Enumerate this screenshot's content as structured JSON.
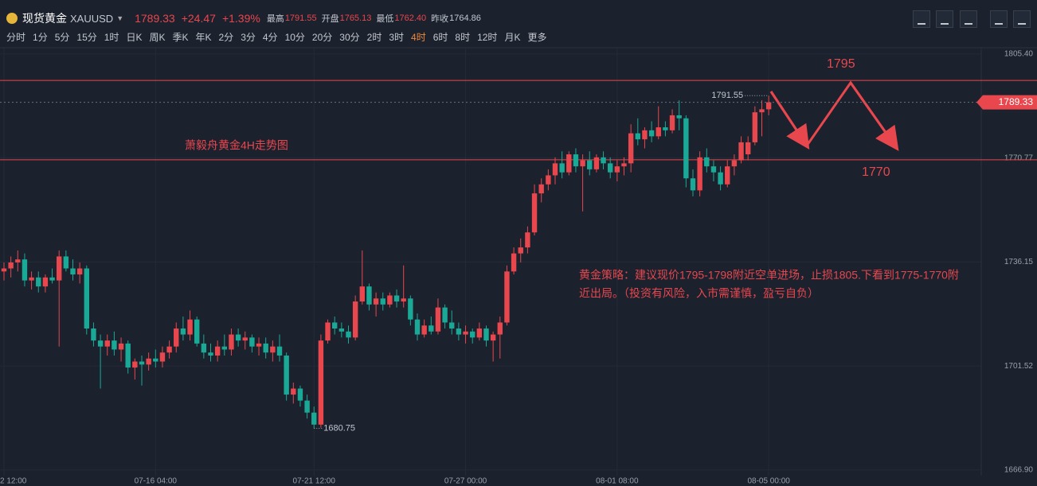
{
  "header": {
    "name": "现货黄金",
    "symbol": "XAUUSD",
    "price": "1789.33",
    "change": "+24.47",
    "change_pct": "+1.39%",
    "stats": [
      {
        "label": "最高",
        "value": "1791.55"
      },
      {
        "label": "开盘",
        "value": "1765.13"
      },
      {
        "label": "最低",
        "value": "1762.40"
      },
      {
        "label": "昨收",
        "value": "1764.86"
      }
    ]
  },
  "periods": [
    "分时",
    "1分",
    "5分",
    "15分",
    "1时",
    "日K",
    "周K",
    "季K",
    "年K",
    "2分",
    "3分",
    "4分",
    "10分",
    "20分",
    "30分",
    "2时",
    "3时",
    "4时",
    "6时",
    "8时",
    "12时",
    "月K",
    "更多"
  ],
  "active_period_index": 17,
  "chart_data": {
    "type": "candlestick",
    "up_color": "#e8474e",
    "down_color": "#1aa996",
    "title": "萧毅舟黄金4H走势图",
    "strategy": [
      "黄金策略：建议现价1795-1798附近空单进场，止损1805.下看到1775-1770附",
      "近出局。（投资有风险，入市需谨慎，盈亏自负）"
    ],
    "targets": [
      "1795",
      "1770"
    ],
    "levels": [
      1796.6,
      1770.2
    ],
    "level_color": "#e8474e",
    "ylim": [
      1665,
      1807.5
    ],
    "yticks": [
      {
        "value": 1805.4,
        "label": "1805.40"
      },
      1770.77,
      1736.15,
      1701.52,
      {
        "value": 1666.9,
        "label": "1666.90"
      }
    ],
    "grid": true,
    "categories": [
      "2 12:00",
      null,
      null,
      null,
      null,
      null,
      null,
      null,
      null,
      null,
      null,
      null,
      null,
      null,
      null,
      null,
      null,
      null,
      null,
      null,
      null,
      null,
      "07-16 04:00",
      null,
      null,
      null,
      null,
      null,
      null,
      null,
      null,
      null,
      null,
      null,
      null,
      null,
      null,
      null,
      null,
      null,
      null,
      null,
      null,
      null,
      null,
      "07-21 12:00",
      null,
      null,
      null,
      null,
      null,
      null,
      null,
      null,
      null,
      null,
      null,
      null,
      null,
      null,
      null,
      null,
      null,
      null,
      null,
      null,
      null,
      "07-27 00:00",
      null,
      null,
      null,
      null,
      null,
      null,
      null,
      null,
      null,
      null,
      null,
      null,
      null,
      null,
      null,
      null,
      null,
      null,
      null,
      null,
      null,
      "08-01 08:00",
      null,
      null,
      null,
      null,
      null,
      null,
      null,
      null,
      null,
      null,
      null,
      null,
      null,
      null,
      null,
      null,
      null,
      null,
      null,
      null,
      null,
      "08-05 00:00"
    ],
    "open": [
      1733,
      1734,
      1736,
      1737,
      1730,
      1731,
      1728,
      1731,
      1730,
      1738,
      1734,
      1732,
      1734,
      1714,
      1710,
      1708,
      1710,
      1707,
      1709,
      1701,
      1703,
      1702,
      1704,
      1703,
      1706,
      1708,
      1714,
      1712,
      1717,
      1709,
      1706,
      1705,
      1708,
      1707,
      1712,
      1710,
      1711,
      1708,
      1709,
      1706,
      1708,
      1705,
      1692,
      1694,
      1690,
      1686,
      1682,
      1710,
      1716,
      1714,
      1713,
      1711,
      1723,
      1728,
      1722,
      1724,
      1722,
      1725,
      1723,
      1724,
      1717,
      1712,
      1715,
      1713,
      1721,
      1716,
      1714,
      1712,
      1713,
      1711,
      1714,
      1710,
      1712,
      1716,
      1733,
      1739,
      1741,
      1746,
      1759,
      1762,
      1765,
      1769,
      1766,
      1772,
      1768,
      1770,
      1767,
      1771,
      1769,
      1766,
      1768,
      1769,
      1779,
      1777,
      1780,
      1778,
      1781,
      1780,
      1785,
      1784,
      1764,
      1760,
      1771,
      1768,
      1766,
      1762,
      1768,
      1770,
      1772,
      1776,
      1786,
      1787
    ],
    "high": [
      1736,
      1738,
      1740,
      1739,
      1733,
      1733,
      1732,
      1734,
      1740,
      1740,
      1737,
      1736,
      1735,
      1716,
      1712,
      1712,
      1713,
      1711,
      1710,
      1704,
      1705,
      1706,
      1707,
      1708,
      1710,
      1716,
      1718,
      1720,
      1718,
      1712,
      1709,
      1710,
      1712,
      1714,
      1714,
      1713,
      1712,
      1711,
      1711,
      1710,
      1712,
      1706,
      1696,
      1695,
      1692,
      1688,
      1712,
      1717,
      1718,
      1716,
      1715,
      1725,
      1740,
      1729,
      1726,
      1726,
      1726,
      1727,
      1735,
      1725,
      1719,
      1717,
      1718,
      1724,
      1722,
      1720,
      1716,
      1715,
      1714,
      1716,
      1715,
      1713,
      1718,
      1735,
      1741,
      1744,
      1748,
      1762,
      1764,
      1767,
      1771,
      1773,
      1773,
      1774,
      1772,
      1773,
      1772,
      1773,
      1771,
      1770,
      1771,
      1782,
      1784,
      1781,
      1783,
      1788,
      1783,
      1787,
      1790,
      1785,
      1767,
      1773,
      1774,
      1770,
      1768,
      1770,
      1772,
      1778,
      1778,
      1788,
      1790,
      1791.55
    ],
    "low": [
      1730,
      1731,
      1733,
      1728,
      1727,
      1726,
      1726,
      1729,
      1708,
      1733,
      1730,
      1729,
      1712,
      1708,
      1694,
      1705,
      1705,
      1703,
      1699,
      1697,
      1695,
      1700,
      1701,
      1701,
      1704,
      1706,
      1710,
      1710,
      1708,
      1704,
      1703,
      1703,
      1705,
      1705,
      1708,
      1707,
      1706,
      1705,
      1704,
      1703,
      1703,
      1690,
      1689,
      1688,
      1684,
      1680.75,
      1681,
      1709,
      1712,
      1711,
      1709,
      1710,
      1722,
      1720,
      1718,
      1720,
      1721,
      1721,
      1721,
      1715,
      1710,
      1711,
      1712,
      1712,
      1714,
      1712,
      1710,
      1709,
      1709,
      1710,
      1708,
      1703,
      1704,
      1715,
      1732,
      1736,
      1739,
      1745,
      1756,
      1760,
      1762,
      1764,
      1765,
      1766,
      1753,
      1765,
      1766,
      1767,
      1764,
      1763,
      1765,
      1766,
      1775,
      1774,
      1776,
      1777,
      1778,
      1779,
      1780,
      1761,
      1758,
      1758,
      1766,
      1763,
      1760,
      1761,
      1765,
      1769,
      1770,
      1775,
      1778,
      1785
    ],
    "close": [
      1734,
      1736,
      1737,
      1730,
      1731,
      1728,
      1731,
      1730,
      1738,
      1734,
      1732,
      1734,
      1714,
      1710,
      1708,
      1710,
      1707,
      1709,
      1701,
      1703,
      1702,
      1704,
      1703,
      1706,
      1708,
      1714,
      1712,
      1717,
      1709,
      1706,
      1705,
      1708,
      1707,
      1712,
      1710,
      1711,
      1708,
      1709,
      1706,
      1708,
      1705,
      1692,
      1694,
      1690,
      1686,
      1682,
      1710,
      1716,
      1714,
      1713,
      1711,
      1723,
      1728,
      1722,
      1724,
      1722,
      1725,
      1723,
      1724,
      1717,
      1712,
      1715,
      1713,
      1721,
      1716,
      1714,
      1712,
      1713,
      1711,
      1714,
      1710,
      1712,
      1716,
      1733,
      1739,
      1741,
      1746,
      1759,
      1762,
      1765,
      1769,
      1766,
      1772,
      1768,
      1770,
      1767,
      1771,
      1769,
      1766,
      1768,
      1769,
      1779,
      1777,
      1780,
      1778,
      1781,
      1780,
      1785,
      1784,
      1764,
      1760,
      1771,
      1768,
      1766,
      1762,
      1768,
      1770,
      1776,
      1776,
      1786,
      1787,
      1789.33
    ]
  }
}
